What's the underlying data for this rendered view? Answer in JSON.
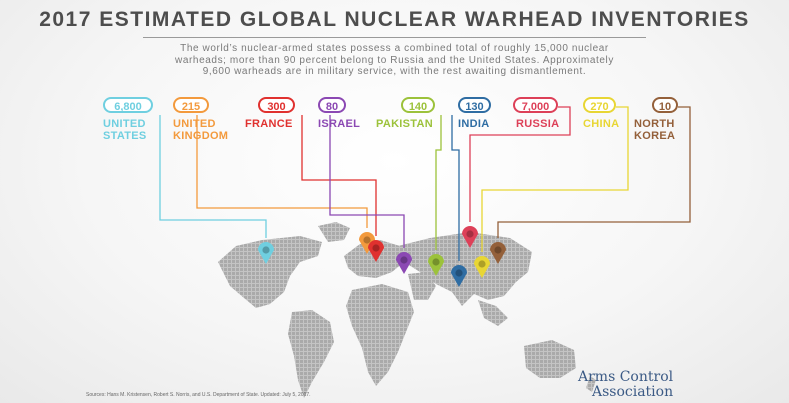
{
  "title": "2017 ESTIMATED GLOBAL NUCLEAR WARHEAD INVENTORIES",
  "subtitle": {
    "line1": "The world’s nuclear-armed states possess a combined total of roughly 15,000 nuclear",
    "line2": "warheads; more than 90 percent belong to Russia and the United States. Approximately",
    "line3": "9,600 warheads are in military service, with the rest awaiting dismantlement."
  },
  "colors": {
    "united_states": "#6fcfe0",
    "united_kingdom": "#f39a3d",
    "france": "#e0312f",
    "israel": "#8b48b3",
    "pakistan": "#9cc23b",
    "india": "#2f6da3",
    "russia": "#dd4058",
    "china": "#e8d634",
    "north_korea": "#94603a",
    "map": "#aaaaaa"
  },
  "chart_data": {
    "type": "bar",
    "categories": [
      "UNITED STATES",
      "UNITED KINGDOM",
      "FRANCE",
      "ISRAEL",
      "PAKISTAN",
      "INDIA",
      "RUSSIA",
      "CHINA",
      "NORTH KOREA"
    ],
    "values": [
      6800,
      215,
      300,
      80,
      140,
      130,
      7000,
      270,
      10
    ],
    "value_labels": [
      "6,800",
      "215",
      "300",
      "80",
      "140",
      "130",
      "7,000",
      "270",
      "10"
    ],
    "name_lines": [
      [
        "UNITED",
        "STATES"
      ],
      [
        "UNITED",
        "KINGDOM"
      ],
      [
        "FRANCE"
      ],
      [
        "ISRAEL"
      ],
      [
        "PAKISTAN"
      ],
      [
        "INDIA"
      ],
      [
        "RUSSIA"
      ],
      [
        "CHINA"
      ],
      [
        "NORTH",
        "KOREA"
      ]
    ]
  },
  "source": "Sources: Hans M. Kristensen, Robert S. Norris, and U.S. Department of State. Updated: July 5, 2017.",
  "logo": {
    "line1": "Arms Control",
    "line2": "Association"
  }
}
